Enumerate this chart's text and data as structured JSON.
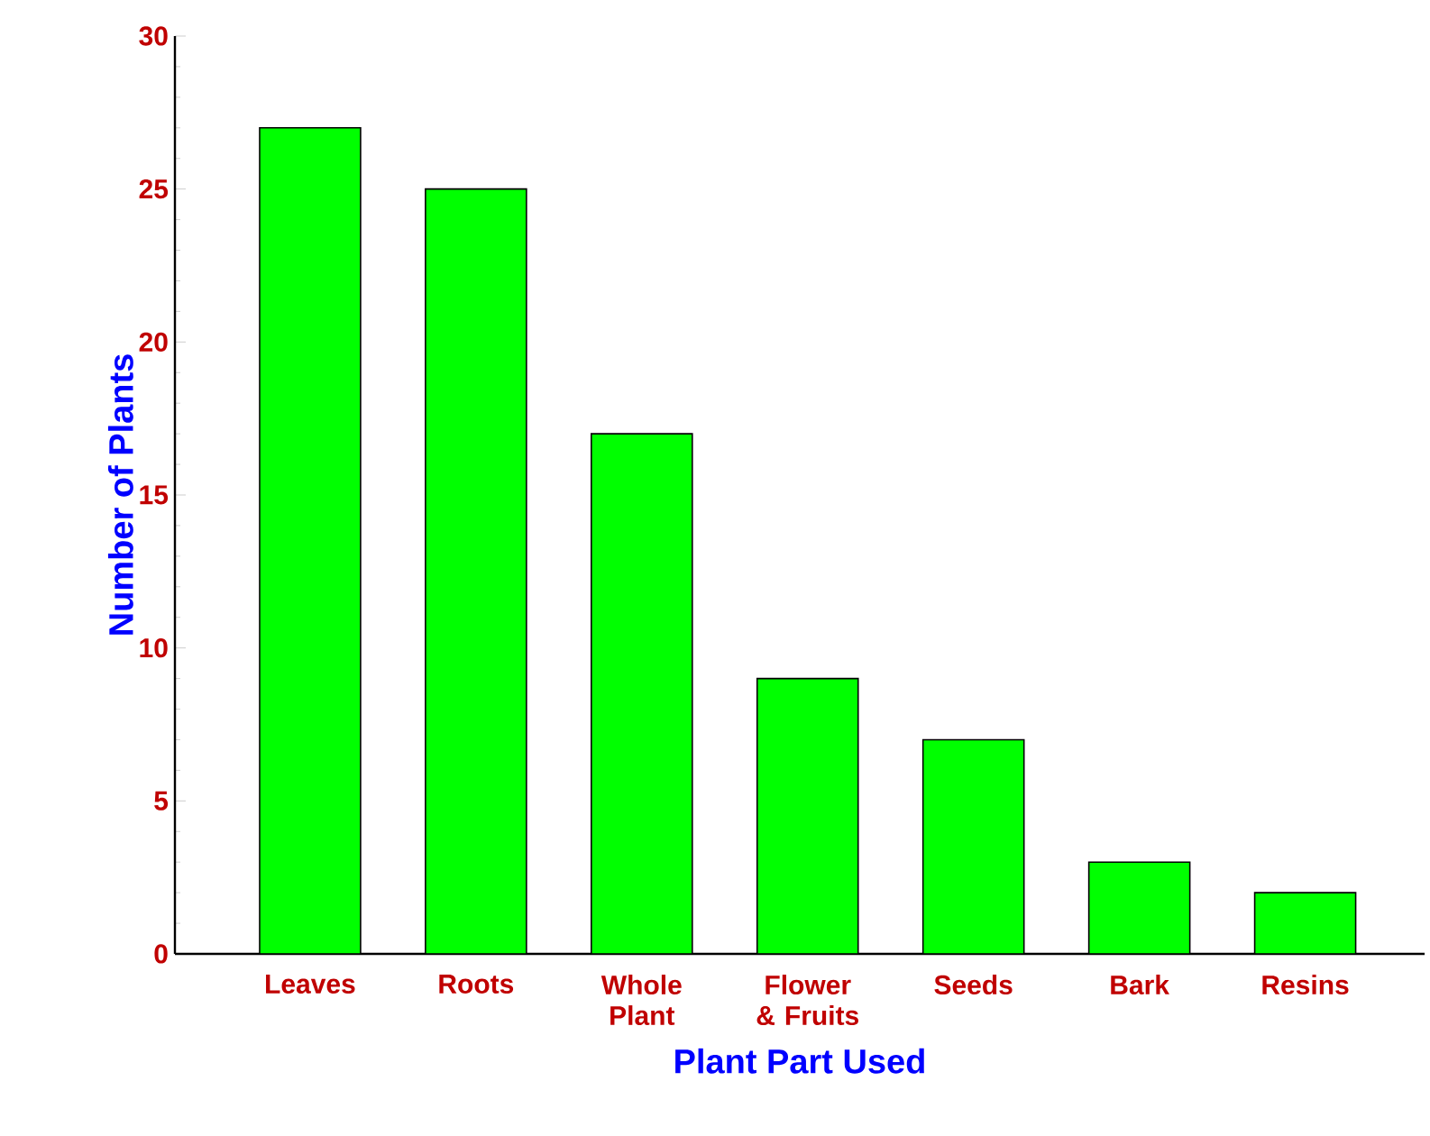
{
  "chart_data": {
    "type": "bar",
    "xlabel": "Plant Part Used",
    "ylabel": "Number of Plants",
    "categories": [
      "Leaves",
      "Roots",
      "Whole Plant",
      "Flower & Fruits",
      "Seeds",
      "Bark",
      "Resins"
    ],
    "values": [
      27,
      25,
      17,
      9,
      7,
      3,
      2
    ],
    "color": "#00ff00",
    "ylim": [
      0,
      30
    ],
    "yticks": [
      0,
      5,
      10,
      15,
      20,
      25,
      30
    ]
  }
}
